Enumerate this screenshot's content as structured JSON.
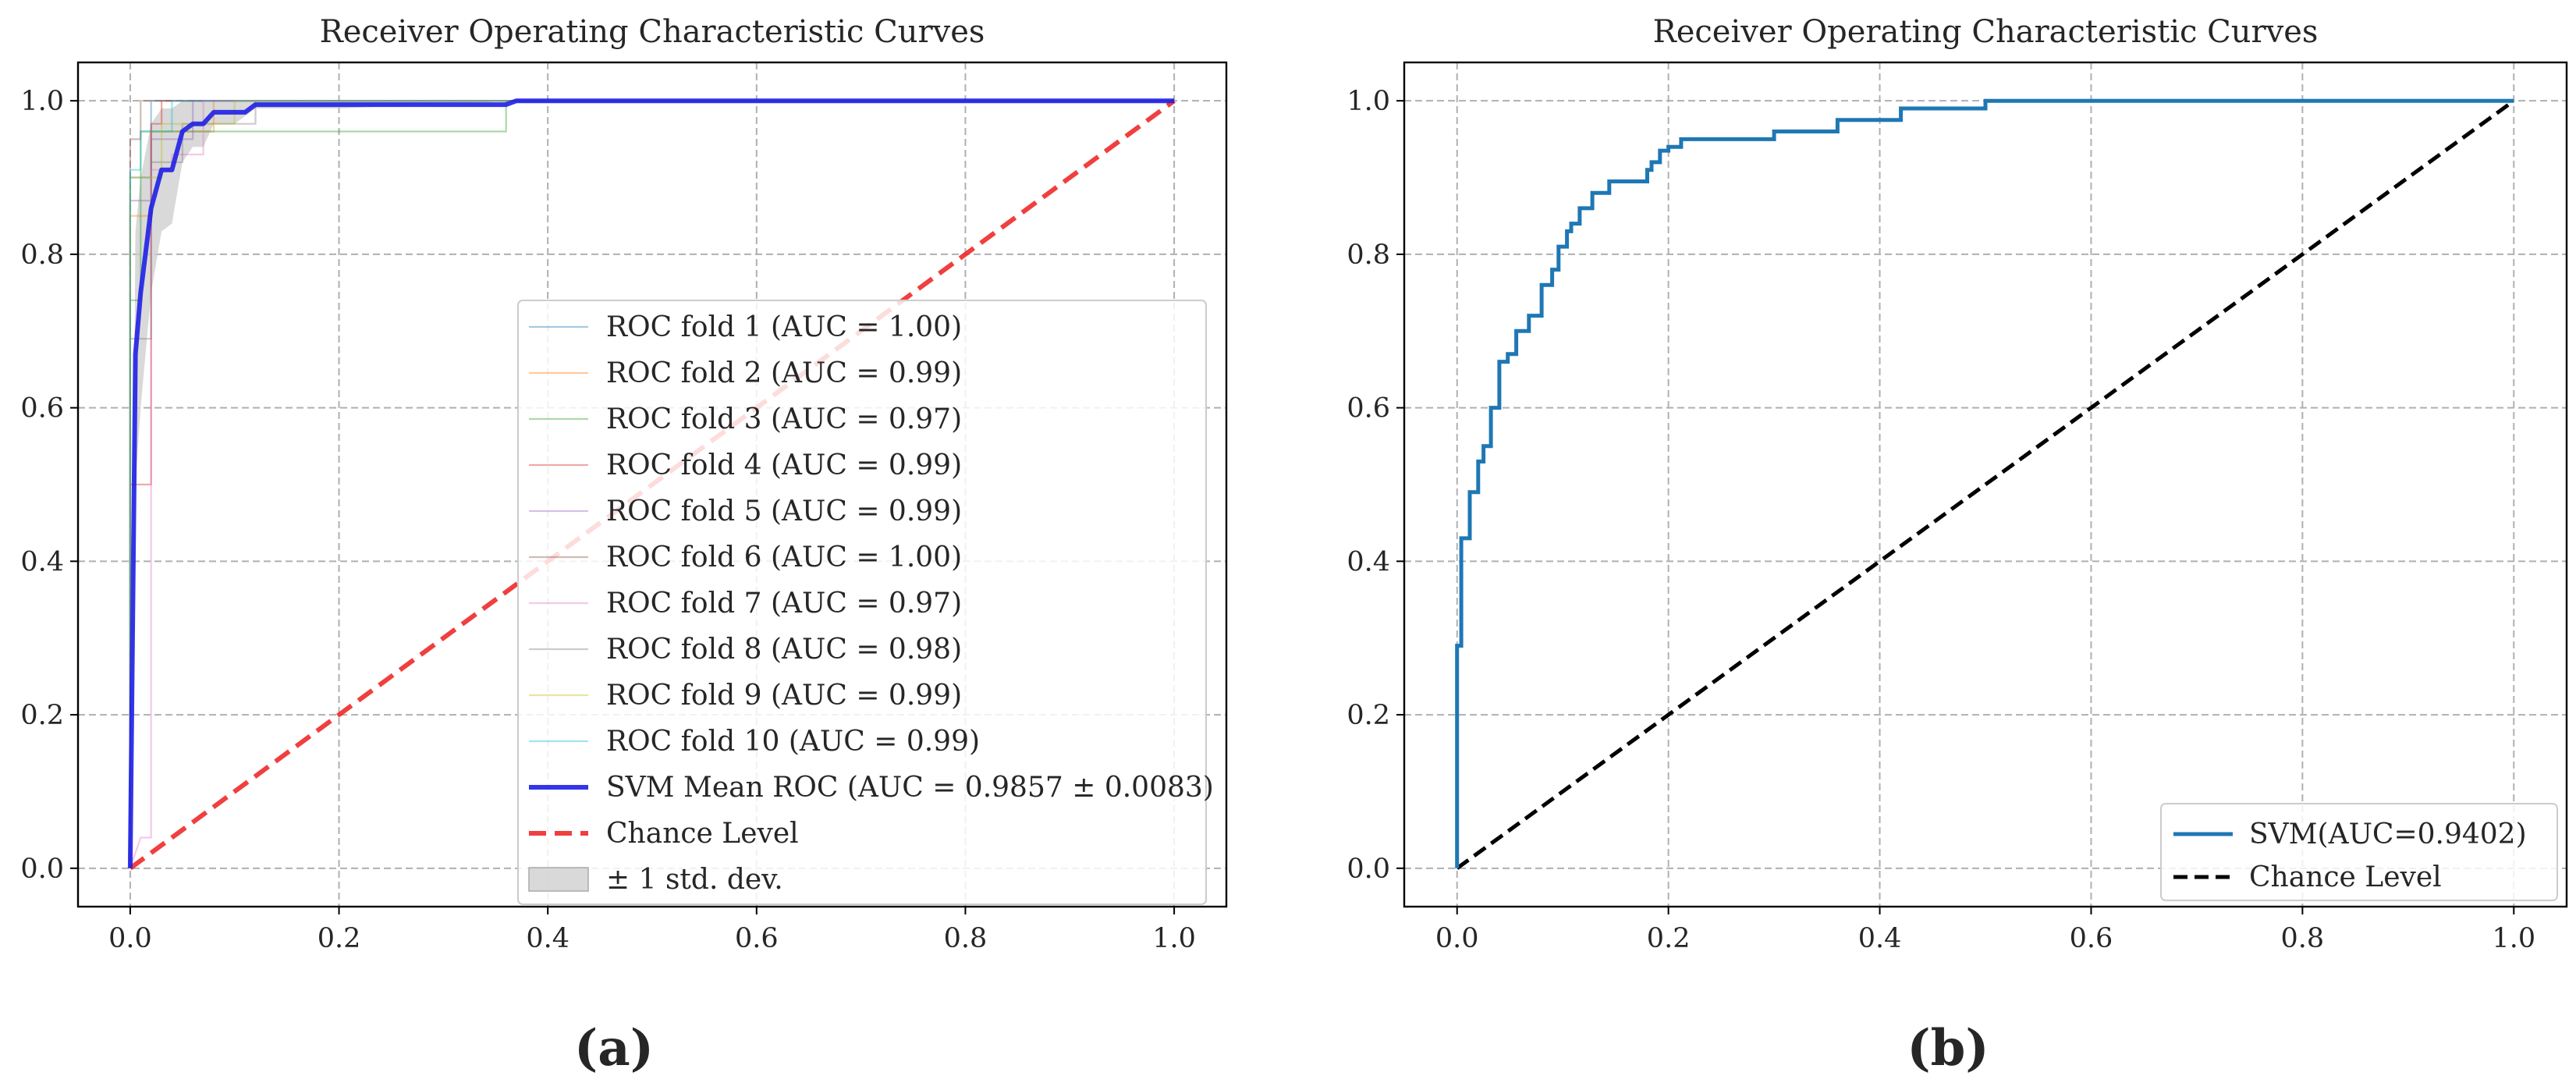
{
  "colors": {
    "grid": "#b0b0b0",
    "mean_roc": "#1f1fe6",
    "chance_red": "#ee2a2a",
    "svm_blue": "#1f77b4",
    "chance_black": "#000000",
    "band": "#cccccc",
    "fold_colors": [
      "#1f77b4",
      "#ff7f0e",
      "#2ca02c",
      "#d62728",
      "#9467bd",
      "#8c564b",
      "#e377c2",
      "#7f7f7f",
      "#bcbd22",
      "#17becf"
    ]
  },
  "chart_data": [
    {
      "panel_label": "(a)",
      "type": "line",
      "title": "Receiver Operating Characteristic Curves",
      "xlabel": "",
      "ylabel": "",
      "xlim": [
        -0.05,
        1.05
      ],
      "ylim": [
        -0.05,
        1.05
      ],
      "xticks": [
        "0.0",
        "0.2",
        "0.4",
        "0.6",
        "0.8",
        "1.0"
      ],
      "yticks": [
        "0.0",
        "0.2",
        "0.4",
        "0.6",
        "0.8",
        "1.0"
      ],
      "grid": true,
      "legend_position": "lower-right",
      "series": [
        {
          "name": "ROC fold 1 (AUC = 1.00)",
          "x": [
            0,
            0,
            0.02,
            0.02,
            1
          ],
          "y": [
            0,
            0.9,
            0.9,
            1,
            1
          ]
        },
        {
          "name": "ROC fold 2 (AUC = 0.99)",
          "x": [
            0,
            0,
            0.02,
            0.02,
            0.08,
            0.08,
            1
          ],
          "y": [
            0,
            0.85,
            0.85,
            0.96,
            0.96,
            1,
            1
          ]
        },
        {
          "name": "ROC fold 3 (AUC = 0.97)",
          "x": [
            0,
            0,
            0.01,
            0.01,
            0.05,
            0.05,
            0.36,
            0.36,
            1
          ],
          "y": [
            0,
            0.74,
            0.74,
            0.96,
            0.96,
            0.96,
            0.96,
            1,
            1
          ]
        },
        {
          "name": "ROC fold 4 (AUC = 0.99)",
          "x": [
            0,
            0,
            0.02,
            0.02,
            0.03,
            0.03,
            1
          ],
          "y": [
            0,
            0.5,
            0.5,
            0.97,
            0.97,
            1,
            1
          ]
        },
        {
          "name": "ROC fold 5 (AUC = 0.99)",
          "x": [
            0,
            0,
            0.02,
            0.02,
            0.06,
            0.06,
            1
          ],
          "y": [
            0,
            0.87,
            0.87,
            0.95,
            0.95,
            1,
            1
          ]
        },
        {
          "name": "ROC fold 6 (AUC = 1.00)",
          "x": [
            0,
            0,
            0.01,
            0.01,
            1
          ],
          "y": [
            0,
            0.95,
            0.95,
            1,
            1
          ]
        },
        {
          "name": "ROC fold 7 (AUC = 0.97)",
          "x": [
            0,
            0.01,
            0.02,
            0.02,
            0.04,
            0.04,
            0.07,
            0.07,
            1
          ],
          "y": [
            0,
            0.04,
            0.04,
            0.91,
            0.91,
            0.93,
            0.93,
            1,
            1
          ]
        },
        {
          "name": "ROC fold 8 (AUC = 0.98)",
          "x": [
            0,
            0,
            0.02,
            0.02,
            0.05,
            0.05,
            0.12,
            0.12,
            1
          ],
          "y": [
            0,
            0.69,
            0.69,
            0.92,
            0.92,
            0.97,
            0.97,
            1,
            1
          ]
        },
        {
          "name": "ROC fold 9 (AUC = 0.99)",
          "x": [
            0,
            0,
            0.03,
            0.03,
            0.1,
            0.1,
            1
          ],
          "y": [
            0,
            0.9,
            0.9,
            0.97,
            0.97,
            1,
            1
          ]
        },
        {
          "name": "ROC fold 10 (AUC = 0.99)",
          "x": [
            0,
            0,
            0.01,
            0.01,
            0.04,
            0.04,
            1
          ],
          "y": [
            0,
            0.91,
            0.91,
            0.96,
            0.96,
            1,
            1
          ]
        },
        {
          "name": "SVM Mean ROC (AUC = 0.9857 ± 0.0083)",
          "x": [
            0,
            0.005,
            0.01,
            0.02,
            0.03,
            0.04,
            0.05,
            0.06,
            0.07,
            0.08,
            0.1,
            0.11,
            0.12,
            0.2,
            0.36,
            0.37,
            1.0
          ],
          "y": [
            0,
            0.67,
            0.75,
            0.86,
            0.91,
            0.91,
            0.96,
            0.97,
            0.97,
            0.985,
            0.985,
            0.985,
            0.995,
            0.995,
            0.995,
            1.0,
            1.0
          ]
        },
        {
          "name": "Chance Level",
          "x": [
            0,
            1
          ],
          "y": [
            0,
            1
          ]
        }
      ],
      "std_band": {
        "name": "± 1 std. dev.",
        "x": [
          0,
          0.005,
          0.01,
          0.02,
          0.03,
          0.04,
          0.05,
          0.06,
          0.07,
          0.08,
          0.1,
          0.12,
          0.2,
          0.37,
          1.0
        ],
        "upper": [
          0,
          0.83,
          0.9,
          0.97,
          0.99,
          0.99,
          1.0,
          1.0,
          1.0,
          1.0,
          1.0,
          1.0,
          1.0,
          1.0,
          1.0
        ],
        "lower": [
          0,
          0.5,
          0.6,
          0.75,
          0.83,
          0.84,
          0.92,
          0.94,
          0.94,
          0.97,
          0.97,
          0.99,
          0.99,
          1.0,
          1.0
        ]
      }
    },
    {
      "panel_label": "(b)",
      "type": "line",
      "title": "Receiver Operating Characteristic Curves",
      "xlabel": "",
      "ylabel": "",
      "xlim": [
        -0.05,
        1.05
      ],
      "ylim": [
        -0.05,
        1.05
      ],
      "xticks": [
        "0.0",
        "0.2",
        "0.4",
        "0.6",
        "0.8",
        "1.0"
      ],
      "yticks": [
        "0.0",
        "0.2",
        "0.4",
        "0.6",
        "0.8",
        "1.0"
      ],
      "grid": true,
      "legend_position": "lower-right",
      "series": [
        {
          "name": "SVM(AUC=0.9402)",
          "x": [
            0,
            0,
            0.004,
            0.004,
            0.012,
            0.012,
            0.02,
            0.02,
            0.025,
            0.025,
            0.032,
            0.032,
            0.04,
            0.04,
            0.048,
            0.048,
            0.056,
            0.056,
            0.06,
            0.06,
            0.068,
            0.068,
            0.08,
            0.08,
            0.09,
            0.09,
            0.096,
            0.096,
            0.104,
            0.104,
            0.108,
            0.108,
            0.116,
            0.116,
            0.128,
            0.128,
            0.136,
            0.136,
            0.144,
            0.144,
            0.18,
            0.18,
            0.184,
            0.184,
            0.192,
            0.192,
            0.2,
            0.2,
            0.212,
            0.212,
            0.22,
            0.22,
            0.3,
            0.3,
            0.36,
            0.36,
            0.42,
            0.42,
            0.5,
            0.5,
            1.0
          ],
          "y": [
            0,
            0.29,
            0.29,
            0.43,
            0.43,
            0.49,
            0.49,
            0.53,
            0.53,
            0.55,
            0.55,
            0.6,
            0.6,
            0.66,
            0.66,
            0.67,
            0.67,
            0.7,
            0.7,
            0.7,
            0.7,
            0.72,
            0.72,
            0.76,
            0.76,
            0.78,
            0.78,
            0.81,
            0.81,
            0.83,
            0.83,
            0.84,
            0.84,
            0.86,
            0.86,
            0.88,
            0.88,
            0.88,
            0.88,
            0.895,
            0.895,
            0.91,
            0.91,
            0.92,
            0.92,
            0.935,
            0.935,
            0.94,
            0.94,
            0.95,
            0.95,
            0.95,
            0.95,
            0.96,
            0.96,
            0.975,
            0.975,
            0.99,
            0.99,
            1.0,
            1.0
          ]
        },
        {
          "name": "Chance Level",
          "x": [
            0,
            1
          ],
          "y": [
            0,
            1
          ]
        }
      ]
    }
  ]
}
